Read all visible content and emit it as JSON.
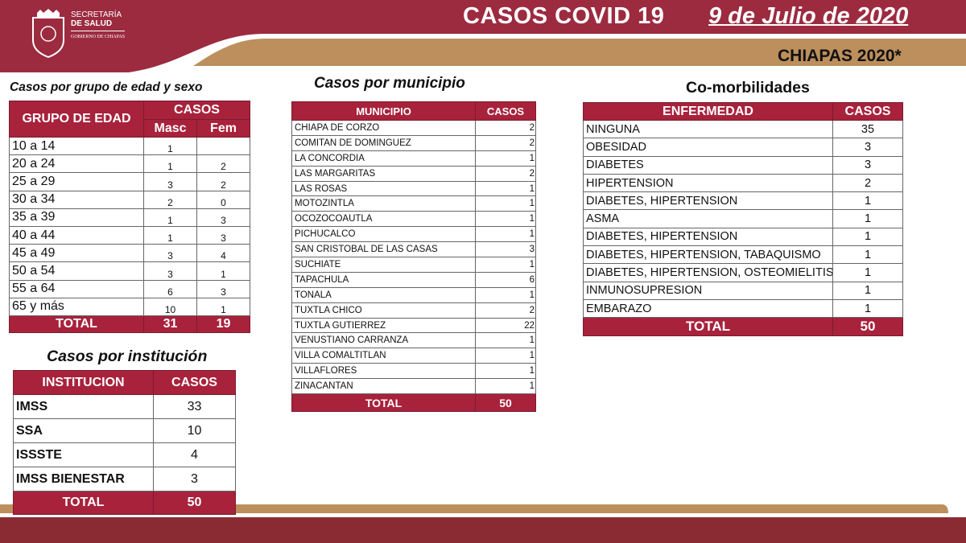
{
  "header": {
    "title": "CASOS COVID 19",
    "date": "9 de Julio de 2020",
    "region": "CHIAPAS 2020*",
    "logo": {
      "line1": "SECRETARÍA",
      "line2": "DE SALUD",
      "line3": "GOBIERNO DE CHIAPAS"
    }
  },
  "colors": {
    "maroon": "#9c2b40",
    "gold": "#bc8f5c",
    "table_header": "#a8223c"
  },
  "age_table": {
    "title": "Casos por grupo de edad y sexo",
    "col_group": "GRUPO DE EDAD",
    "col_cases": "CASOS",
    "col_m": "Masc",
    "col_f": "Fem",
    "rows": [
      [
        "10 a 14",
        "1",
        ""
      ],
      [
        "20 a 24",
        "1",
        "2"
      ],
      [
        "25 a 29",
        "3",
        "2"
      ],
      [
        "30 a 34",
        "2",
        "0"
      ],
      [
        "35 a 39",
        "1",
        "3"
      ],
      [
        "40 a 44",
        "1",
        "3"
      ],
      [
        "45 a 49",
        "3",
        "4"
      ],
      [
        "50 a 54",
        "3",
        "1"
      ],
      [
        "55 a 64",
        "6",
        "3"
      ],
      [
        "65 y más",
        "10",
        "1"
      ]
    ],
    "total": [
      "TOTAL",
      "31",
      "19"
    ]
  },
  "municipio_table": {
    "title": "Casos por municipio",
    "col_name": "MUNICIPIO",
    "col_cases": "CASOS",
    "rows": [
      [
        "CHIAPA DE CORZO",
        "2"
      ],
      [
        "COMITAN DE DOMINGUEZ",
        "2"
      ],
      [
        "LA CONCORDIA",
        "1"
      ],
      [
        "LAS MARGARITAS",
        "2"
      ],
      [
        "LAS ROSAS",
        "1"
      ],
      [
        "MOTOZINTLA",
        "1"
      ],
      [
        "OCOZOCOAUTLA",
        "1"
      ],
      [
        "PICHUCALCO",
        "1"
      ],
      [
        "SAN CRISTOBAL DE LAS CASAS",
        "3"
      ],
      [
        "SUCHIATE",
        "1"
      ],
      [
        "TAPACHULA",
        "6"
      ],
      [
        "TONALA",
        "1"
      ],
      [
        "TUXTLA CHICO",
        "2"
      ],
      [
        "TUXTLA GUTIERREZ",
        "22"
      ],
      [
        "VENUSTIANO CARRANZA",
        "1"
      ],
      [
        "VILLA COMALTITLAN",
        "1"
      ],
      [
        "VILLAFLORES",
        "1"
      ],
      [
        "ZINACANTAN",
        "1"
      ]
    ],
    "total": [
      "TOTAL",
      "50"
    ]
  },
  "comorb_table": {
    "title": "Co-morbilidades",
    "col_name": "ENFERMEDAD",
    "col_cases": "CASOS",
    "rows": [
      [
        "NINGUNA",
        "35"
      ],
      [
        "OBESIDAD",
        "3"
      ],
      [
        "DIABETES",
        "3"
      ],
      [
        "HIPERTENSION",
        "2"
      ],
      [
        "DIABETES, HIPERTENSION",
        "1"
      ],
      [
        "ASMA",
        "1"
      ],
      [
        "DIABETES, HIPERTENSION",
        "1"
      ],
      [
        "DIABETES, HIPERTENSION, TABAQUISMO",
        "1"
      ],
      [
        "DIABETES, HIPERTENSION, OSTEOMIELITIS",
        "1"
      ],
      [
        "INMUNOSUPRESION",
        "1"
      ],
      [
        "EMBARAZO",
        "1"
      ]
    ],
    "total": [
      "TOTAL",
      "50"
    ]
  },
  "inst_table": {
    "title": "Casos por institución",
    "col_name": "INSTITUCION",
    "col_cases": "CASOS",
    "rows": [
      [
        "IMSS",
        "33"
      ],
      [
        "SSA",
        "10"
      ],
      [
        "ISSSTE",
        "4"
      ],
      [
        "IMSS BIENESTAR",
        "3"
      ]
    ],
    "total": [
      "TOTAL",
      "50"
    ]
  }
}
